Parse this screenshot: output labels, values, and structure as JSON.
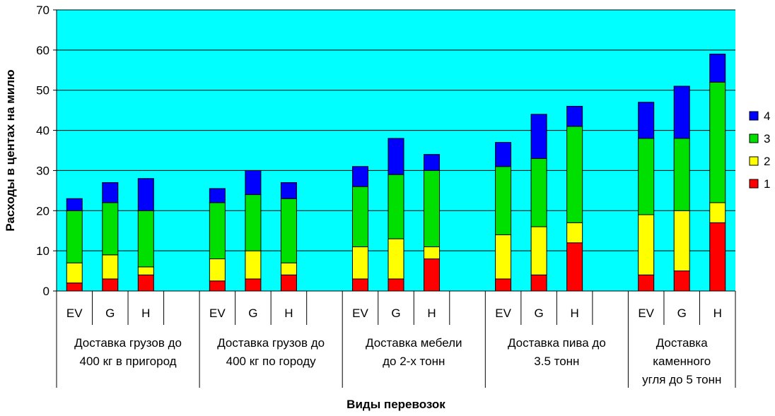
{
  "chart_data": {
    "type": "bar",
    "stacked": true,
    "title": "",
    "ylabel": "Расходы в центах на милю",
    "xlabel": "Виды перевозок",
    "ylim": [
      0,
      70
    ],
    "yticks": [
      0,
      10,
      20,
      30,
      40,
      50,
      60,
      70
    ],
    "grid": true,
    "legend_position": "right",
    "plot_background": "#00FFFF",
    "groups": [
      {
        "label": "Доставка грузов до 400 кг в пригород",
        "label_lines": [
          "Доставка грузов до",
          "400 кг в пригород"
        ],
        "categories": [
          "EV",
          "G",
          "H"
        ]
      },
      {
        "label": "Доставка грузов до 400 кг по городу",
        "label_lines": [
          "Доставка грузов до",
          "400 кг по городу"
        ],
        "categories": [
          "EV",
          "G",
          "H"
        ]
      },
      {
        "label": "Доставка мебели до 2-х тонн",
        "label_lines": [
          "Доставка мебели",
          "до 2-х тонн"
        ],
        "categories": [
          "EV",
          "G",
          "H"
        ]
      },
      {
        "label": "Доставка пива до 3.5 тонн",
        "label_lines": [
          "Доставка пива до",
          "3.5 тонн"
        ],
        "categories": [
          "EV",
          "G",
          "H"
        ]
      },
      {
        "label": "Доставка каменного угля до 5 тонн",
        "label_lines": [
          "Доставка",
          "каменного",
          "угля до 5 тонн"
        ],
        "categories": [
          "EV",
          "G",
          "H"
        ]
      }
    ],
    "series": [
      {
        "name": "1",
        "color": "#FF0000",
        "values": [
          [
            2,
            3,
            4
          ],
          [
            2.5,
            3,
            4
          ],
          [
            3,
            3,
            8
          ],
          [
            3,
            4,
            12
          ],
          [
            4,
            5,
            17
          ]
        ]
      },
      {
        "name": "2",
        "color": "#FFFF00",
        "values": [
          [
            5,
            6,
            2
          ],
          [
            5.5,
            7,
            3
          ],
          [
            8,
            10,
            3
          ],
          [
            11,
            12,
            5
          ],
          [
            15,
            15,
            5
          ]
        ]
      },
      {
        "name": "3",
        "color": "#00E000",
        "values": [
          [
            13,
            13,
            14
          ],
          [
            14,
            14,
            16
          ],
          [
            15,
            16,
            19
          ],
          [
            17,
            17,
            24
          ],
          [
            19,
            18,
            30
          ]
        ]
      },
      {
        "name": "4",
        "color": "#0000FF",
        "values": [
          [
            3,
            5,
            8
          ],
          [
            3.5,
            6,
            4
          ],
          [
            5,
            9,
            4
          ],
          [
            6,
            11,
            5
          ],
          [
            9,
            13,
            7
          ]
        ]
      }
    ]
  }
}
